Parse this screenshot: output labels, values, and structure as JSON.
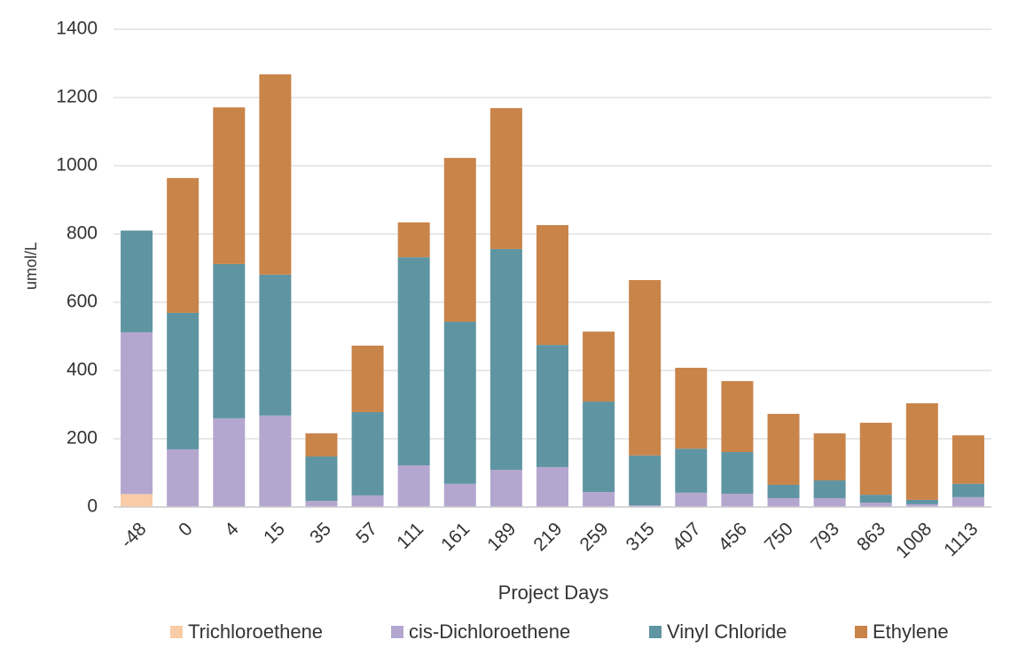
{
  "chart_data": {
    "type": "stacked_bar",
    "x_label": "Project Days",
    "y_label": "umol/L",
    "categories": [
      "-48",
      "0",
      "4",
      "15",
      "35",
      "57",
      "111",
      "161",
      "189",
      "219",
      "259",
      "315",
      "407",
      "456",
      "750",
      "793",
      "863",
      "1008",
      "1113"
    ],
    "series": [
      {
        "name": "Trichloroethene",
        "color": "#f9cba6",
        "values": [
          38,
          0,
          0,
          0,
          0,
          0,
          0,
          0,
          0,
          0,
          0,
          0,
          0,
          0,
          0,
          0,
          0,
          0,
          0
        ]
      },
      {
        "name": "cis-Dichloroethene",
        "color": "#b4a7cf",
        "values": [
          474,
          169,
          260,
          268,
          18,
          34,
          122,
          68,
          109,
          117,
          44,
          5,
          42,
          39,
          26,
          26,
          13,
          8,
          29
        ]
      },
      {
        "name": "Vinyl Chloride",
        "color": "#5f95a2",
        "values": [
          298,
          400,
          452,
          413,
          130,
          244,
          610,
          475,
          647,
          358,
          265,
          146,
          129,
          122,
          39,
          52,
          23,
          13,
          39
        ]
      },
      {
        "name": "Ethylene",
        "color": "#c9844a",
        "values": [
          0,
          395,
          459,
          587,
          68,
          195,
          102,
          480,
          413,
          351,
          205,
          514,
          237,
          208,
          208,
          138,
          211,
          283,
          142
        ]
      }
    ],
    "ylim": [
      0,
      1400
    ],
    "yticks": [
      0,
      200,
      400,
      600,
      800,
      1000,
      1200,
      1400
    ],
    "grid": true,
    "legend": "bottom"
  }
}
